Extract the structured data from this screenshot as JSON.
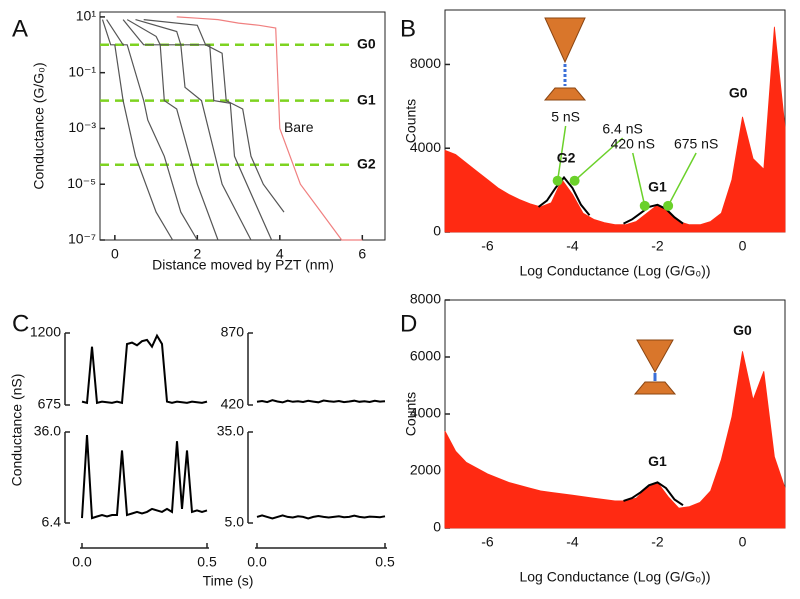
{
  "chart_data": [
    {
      "panel": "A",
      "type": "line",
      "xlabel": "Distance moved by PZT (nm)",
      "ylabel": "Conductance (G/G₀)",
      "xlim": [
        -0.36,
        6.55
      ],
      "xticks": [
        0,
        2,
        4,
        6
      ],
      "ylim": [
        1e-07,
        15
      ],
      "yscale": "log",
      "yticks": [
        {
          "value": 10,
          "label": "10¹"
        },
        {
          "value": 0.1,
          "label": "10⁻¹"
        },
        {
          "value": 0.001,
          "label": "10⁻³"
        },
        {
          "value": 1e-05,
          "label": "10⁻⁵"
        },
        {
          "value": 1e-07,
          "label": "10⁻⁷"
        }
      ],
      "series": [
        {
          "color": "#555555",
          "x": [
            -0.3,
            -0.1,
            0,
            0.2,
            0.5,
            1.0,
            1.4
          ],
          "values": [
            8,
            1,
            1,
            0.01,
            0.0001,
            1e-06,
            1e-07
          ]
        },
        {
          "color": "#555555",
          "x": [
            -0.2,
            0.2,
            0.3,
            0.7,
            0.8,
            1.2,
            1.6,
            2.0
          ],
          "values": [
            8,
            1,
            1,
            0.01,
            0.002,
            0.0001,
            1e-06,
            1e-07
          ]
        },
        {
          "color": "#555555",
          "x": [
            0.2,
            0.6,
            0.7,
            1.1,
            1.2,
            1.5,
            2.0,
            2.5
          ],
          "values": [
            8,
            1.5,
            1,
            1,
            0.01,
            0.005,
            1e-05,
            1e-07
          ]
        },
        {
          "color": "#555555",
          "x": [
            0.3,
            1.0,
            1.1,
            1.6,
            1.7,
            2.1,
            2.6,
            3.3
          ],
          "values": [
            8,
            2,
            1,
            1,
            0.03,
            0.01,
            1e-05,
            1e-07
          ]
        },
        {
          "color": "#555555",
          "x": [
            0.5,
            1.5,
            1.6,
            2.3,
            2.4,
            2.8,
            2.9,
            3.5,
            3.8
          ],
          "values": [
            8,
            3,
            1,
            1,
            0.01,
            0.008,
            0.0001,
            1e-06,
            1e-07
          ]
        },
        {
          "color": "#555555",
          "x": [
            0.7,
            2.0,
            2.2,
            2.6,
            2.7,
            3.1,
            3.3,
            3.6,
            4.1
          ],
          "values": [
            8,
            5,
            1,
            0.5,
            0.01,
            0.005,
            0.0001,
            1e-05,
            1e-06
          ]
        },
        {
          "color": "#f08080",
          "x": [
            1.5,
            2.0,
            2.5,
            3.0,
            3.5,
            3.9,
            4.0,
            4.5,
            5.0,
            5.5,
            6.0
          ],
          "values": [
            10,
            9,
            8,
            6,
            5,
            4,
            0.001,
            1e-05,
            1e-06,
            1e-07,
            1e-07
          ]
        }
      ],
      "hline_color": "#7ed321",
      "hlines": [
        {
          "value": 1,
          "label": "G0"
        },
        {
          "value": 0.01,
          "label": "G1"
        },
        {
          "value": 5e-05,
          "label": "G2"
        }
      ],
      "annotations": [
        {
          "text": "Bare",
          "x": 4.1,
          "y": 0.001,
          "color": "#f05a5a"
        }
      ]
    },
    {
      "panel": "B",
      "type": "area",
      "xlabel": "Log Conductance (Log (G/G₀))",
      "ylabel": "Counts",
      "xlim": [
        -7,
        1
      ],
      "xticks": [
        -6,
        -4,
        -2,
        0
      ],
      "ylim": [
        0,
        10600
      ],
      "yticks": [
        0,
        4000,
        8000
      ],
      "series": [
        {
          "color": "#ff2a12",
          "fill": true,
          "x": [
            -7,
            -6.75,
            -6.5,
            -6.25,
            -6,
            -5.75,
            -5.5,
            -5.25,
            -5,
            -4.75,
            -4.5,
            -4.25,
            -4,
            -3.75,
            -3.5,
            -3.25,
            -3,
            -2.75,
            -2.5,
            -2.25,
            -2,
            -1.75,
            -1.5,
            -1.25,
            -1,
            -0.75,
            -0.5,
            -0.25,
            0,
            0.25,
            0.5,
            0.75,
            1
          ],
          "values": [
            3900,
            3700,
            3300,
            2900,
            2500,
            2100,
            1800,
            1550,
            1350,
            1200,
            1400,
            2500,
            1800,
            900,
            600,
            450,
            350,
            350,
            500,
            900,
            1300,
            1000,
            500,
            350,
            350,
            500,
            900,
            2500,
            5500,
            3500,
            3000,
            9800,
            5000
          ]
        },
        {
          "color": "#000000",
          "x": [
            -4.8,
            -4.6,
            -4.4,
            -4.2,
            -4.0,
            -3.8,
            -3.6
          ],
          "values": [
            1200,
            1500,
            2100,
            2600,
            2100,
            1300,
            800
          ]
        },
        {
          "color": "#000000",
          "x": [
            -2.8,
            -2.6,
            -2.4,
            -2.2,
            -2.0,
            -1.8,
            -1.6,
            -1.4
          ],
          "values": [
            400,
            600,
            900,
            1200,
            1300,
            1100,
            700,
            400
          ]
        }
      ],
      "peak_color": "#6bd12a",
      "peaks": [
        {
          "x": -0.1,
          "y": 6600,
          "label": "G0"
        },
        {
          "x": -2.0,
          "y": 2100,
          "label": "G1"
        },
        {
          "x": -4.15,
          "y": 3500,
          "label": "G2"
        }
      ],
      "points": [
        {
          "x": -4.35,
          "y": 2450,
          "label": "5 nS"
        },
        {
          "x": -3.95,
          "y": 2450,
          "label": "6.4 nS"
        },
        {
          "x": -2.3,
          "y": 1250,
          "label": "420 nS"
        },
        {
          "x": -1.75,
          "y": 1250,
          "label": "675 nS"
        }
      ]
    },
    {
      "panel": "C",
      "type": "line",
      "ylabel": "Conductance (nS)",
      "color": "#000000",
      "xlim": [
        0,
        0.5
      ],
      "ylim": [
        675,
        1200
      ],
      "yticks": [
        675,
        1200
      ],
      "x": [
        0,
        0.02,
        0.04,
        0.06,
        0.08,
        0.1,
        0.12,
        0.14,
        0.16,
        0.18,
        0.2,
        0.22,
        0.24,
        0.26,
        0.28,
        0.3,
        0.32,
        0.34,
        0.36,
        0.38,
        0.4,
        0.42,
        0.44,
        0.46,
        0.48,
        0.5
      ],
      "values": [
        700,
        690,
        1100,
        690,
        700,
        695,
        690,
        700,
        690,
        1120,
        1130,
        1110,
        1140,
        1150,
        1100,
        1180,
        1120,
        700,
        690,
        700,
        695,
        690,
        700,
        695,
        690,
        700
      ]
    },
    {
      "type": "line",
      "color": "#000000",
      "xlim": [
        0,
        0.5
      ],
      "ylim": [
        420,
        870
      ],
      "yticks": [
        420,
        870
      ],
      "x": [
        0,
        0.02,
        0.04,
        0.06,
        0.08,
        0.1,
        0.12,
        0.14,
        0.16,
        0.18,
        0.2,
        0.22,
        0.24,
        0.26,
        0.28,
        0.3,
        0.32,
        0.34,
        0.36,
        0.38,
        0.4,
        0.42,
        0.44,
        0.46,
        0.48,
        0.5
      ],
      "values": [
        440,
        445,
        438,
        450,
        442,
        436,
        447,
        440,
        444,
        439,
        446,
        441,
        437,
        448,
        443,
        440,
        445,
        438,
        442,
        447,
        440,
        444,
        439,
        446,
        441,
        443
      ]
    },
    {
      "type": "line",
      "color": "#000000",
      "xlabel": "Time (s)",
      "xlim": [
        0,
        0.5
      ],
      "xticks": [
        {
          "value": 0,
          "label": "0.0"
        },
        0.5
      ],
      "ylim": [
        6.4,
        36
      ],
      "yticks": [
        6.4,
        {
          "value": 36,
          "label": "36.0"
        }
      ],
      "x": [
        0,
        0.02,
        0.04,
        0.06,
        0.08,
        0.1,
        0.12,
        0.14,
        0.16,
        0.18,
        0.2,
        0.22,
        0.24,
        0.26,
        0.28,
        0.3,
        0.32,
        0.34,
        0.36,
        0.38,
        0.4,
        0.42,
        0.44,
        0.46,
        0.48,
        0.5
      ],
      "values": [
        8,
        35,
        8,
        8.5,
        9,
        8.5,
        9,
        9,
        30,
        9,
        9.5,
        10,
        9.5,
        10,
        11,
        10.5,
        10,
        11,
        10,
        33,
        11,
        30,
        10,
        10.5,
        10,
        10.5
      ]
    },
    {
      "type": "line",
      "color": "#000000",
      "xlim": [
        0,
        0.5
      ],
      "xticks": [
        {
          "value": 0,
          "label": "0.0"
        },
        0.5
      ],
      "ylim": [
        5,
        35
      ],
      "yticks": [
        {
          "value": 5,
          "label": "5.0"
        },
        {
          "value": 35,
          "label": "35.0"
        }
      ],
      "x": [
        0,
        0.02,
        0.04,
        0.06,
        0.08,
        0.1,
        0.12,
        0.14,
        0.16,
        0.18,
        0.2,
        0.22,
        0.24,
        0.26,
        0.28,
        0.3,
        0.32,
        0.34,
        0.36,
        0.38,
        0.4,
        0.42,
        0.44,
        0.46,
        0.48,
        0.5
      ],
      "values": [
        7,
        7.5,
        7,
        6.5,
        7,
        7.5,
        7,
        6.8,
        7.2,
        7,
        6.5,
        7,
        7.3,
        7,
        6.8,
        7,
        7.2,
        6.9,
        7,
        7.4,
        7,
        6.8,
        7.1,
        7,
        6.9,
        7.2
      ]
    },
    {
      "panel": "D",
      "type": "area",
      "xlabel": "Log Conductance (Log (G/G₀))",
      "ylabel": "Counts",
      "xlim": [
        -7,
        1
      ],
      "xticks": [
        -6,
        -4,
        -2,
        0
      ],
      "ylim": [
        0,
        8000
      ],
      "yticks": [
        0,
        2000,
        4000,
        6000,
        8000
      ],
      "series": [
        {
          "color": "#ff2a12",
          "fill": true,
          "x": [
            -7,
            -6.75,
            -6.5,
            -6.25,
            -6,
            -5.75,
            -5.5,
            -5.25,
            -5,
            -4.75,
            -4.5,
            -4.25,
            -4,
            -3.75,
            -3.5,
            -3.25,
            -3,
            -2.75,
            -2.5,
            -2.25,
            -2,
            -1.75,
            -1.5,
            -1.25,
            -1,
            -0.75,
            -0.5,
            -0.25,
            0,
            0.25,
            0.5,
            0.75,
            1
          ],
          "values": [
            3400,
            2700,
            2300,
            2100,
            1900,
            1750,
            1600,
            1500,
            1400,
            1300,
            1250,
            1200,
            1150,
            1100,
            1050,
            1000,
            950,
            950,
            1050,
            1400,
            1600,
            1100,
            700,
            750,
            900,
            1300,
            2400,
            3900,
            6200,
            4500,
            5500,
            2500,
            1400
          ]
        },
        {
          "color": "#000000",
          "x": [
            -2.8,
            -2.6,
            -2.4,
            -2.2,
            -2.0,
            -1.8,
            -1.6,
            -1.4
          ],
          "values": [
            950,
            1050,
            1250,
            1500,
            1600,
            1400,
            1000,
            800
          ]
        }
      ],
      "peak_color": "#6bd12a",
      "peaks": [
        {
          "x": 0,
          "y": 6900,
          "label": "G0"
        },
        {
          "x": -2.0,
          "y": 2300,
          "label": "G1"
        }
      ]
    }
  ]
}
